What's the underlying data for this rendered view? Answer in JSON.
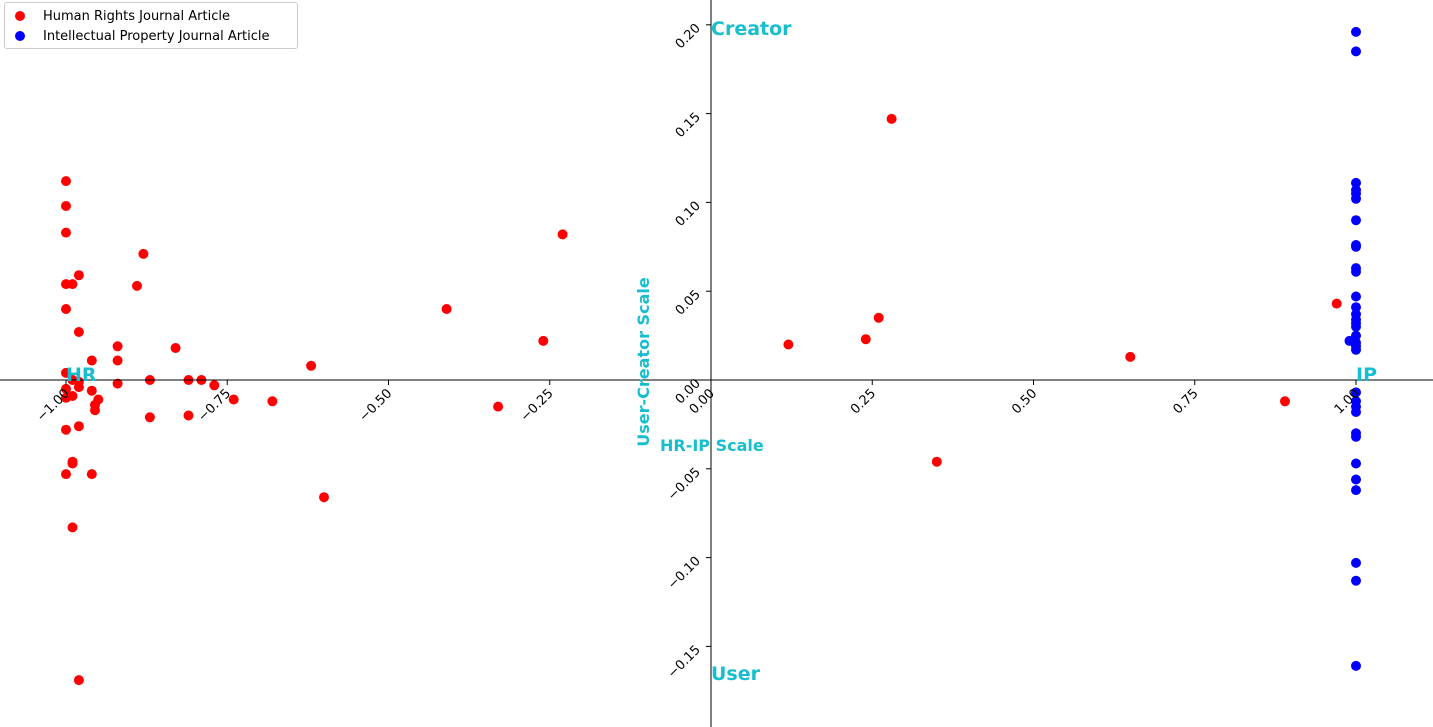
{
  "chart_data": {
    "type": "scatter",
    "xlim": [
      -1.1,
      1.1
    ],
    "ylim": [
      -0.195,
      0.215
    ],
    "x_ticks": [
      "−1.00",
      "−0.75",
      "−0.50",
      "−0.25",
      "0.00",
      "0.25",
      "0.50",
      "0.75",
      "1.00"
    ],
    "x_tick_values": [
      -1.0,
      -0.75,
      -0.5,
      -0.25,
      0.0,
      0.25,
      0.5,
      0.75,
      1.0
    ],
    "y_ticks": [
      "−0.15",
      "−0.10",
      "−0.05",
      "0.00",
      "0.05",
      "0.10",
      "0.15",
      "0.20"
    ],
    "y_tick_values": [
      -0.15,
      -0.1,
      -0.05,
      0.0,
      0.05,
      0.1,
      0.15,
      0.2
    ],
    "xlabel": "HR-IP Scale",
    "ylabel": "User-Creator Scale",
    "annotations": {
      "left": "HR",
      "right": "IP",
      "top": "Creator",
      "bottom": "User",
      "color": "#17becf"
    },
    "grid": false,
    "legend_position": "upper left",
    "series": [
      {
        "name": "Human Rights Journal Article",
        "color": "#ff0000",
        "points": [
          [
            -1.0,
            0.112
          ],
          [
            -1.0,
            0.098
          ],
          [
            -1.0,
            0.083
          ],
          [
            -1.0,
            0.054
          ],
          [
            -0.99,
            0.054
          ],
          [
            -0.98,
            0.059
          ],
          [
            -1.0,
            0.04
          ],
          [
            -0.98,
            0.027
          ],
          [
            -0.96,
            0.011
          ],
          [
            -1.0,
            0.004
          ],
          [
            -0.99,
            0.0
          ],
          [
            -0.98,
            -0.001
          ],
          [
            -1.0,
            -0.005
          ],
          [
            -0.98,
            -0.004
          ],
          [
            -0.96,
            -0.006
          ],
          [
            -0.99,
            -0.009
          ],
          [
            -1.0,
            -0.01
          ],
          [
            -0.955,
            -0.014
          ],
          [
            -0.95,
            -0.011
          ],
          [
            -0.955,
            -0.017
          ],
          [
            -1.0,
            -0.028
          ],
          [
            -0.98,
            -0.026
          ],
          [
            -0.99,
            -0.046
          ],
          [
            -0.99,
            -0.047
          ],
          [
            -1.0,
            -0.053
          ],
          [
            -0.96,
            -0.053
          ],
          [
            -0.99,
            -0.083
          ],
          [
            -0.98,
            -0.169
          ],
          [
            -0.92,
            0.019
          ],
          [
            -0.92,
            0.011
          ],
          [
            -0.92,
            -0.002
          ],
          [
            -0.89,
            0.053
          ],
          [
            -0.88,
            0.071
          ],
          [
            -0.87,
            0.0
          ],
          [
            -0.87,
            -0.021
          ],
          [
            -0.83,
            0.018
          ],
          [
            -0.81,
            0.0
          ],
          [
            -0.81,
            -0.02
          ],
          [
            -0.79,
            0.0
          ],
          [
            -0.77,
            -0.003
          ],
          [
            -0.74,
            -0.011
          ],
          [
            -0.68,
            -0.012
          ],
          [
            -0.62,
            0.008
          ],
          [
            -0.6,
            -0.066
          ],
          [
            -0.41,
            0.04
          ],
          [
            -0.33,
            -0.015
          ],
          [
            -0.26,
            0.022
          ],
          [
            -0.23,
            0.082
          ],
          [
            0.12,
            0.02
          ],
          [
            0.24,
            0.023
          ],
          [
            0.26,
            0.035
          ],
          [
            0.28,
            0.147
          ],
          [
            0.35,
            -0.046
          ],
          [
            0.65,
            0.013
          ],
          [
            0.89,
            -0.012
          ],
          [
            0.97,
            0.043
          ]
        ]
      },
      {
        "name": "Intellectual Property Journal Article",
        "color": "#0000ff",
        "points": [
          [
            1.0,
            0.196
          ],
          [
            1.0,
            0.185
          ],
          [
            1.0,
            0.111
          ],
          [
            1.0,
            0.107
          ],
          [
            1.0,
            0.105
          ],
          [
            1.0,
            0.102
          ],
          [
            1.0,
            0.09
          ],
          [
            1.0,
            0.076
          ],
          [
            1.0,
            0.075
          ],
          [
            1.0,
            0.063
          ],
          [
            1.0,
            0.061
          ],
          [
            1.0,
            0.047
          ],
          [
            1.0,
            0.041
          ],
          [
            1.0,
            0.037
          ],
          [
            1.0,
            0.034
          ],
          [
            1.0,
            0.032
          ],
          [
            1.0,
            0.03
          ],
          [
            1.0,
            0.025
          ],
          [
            1.0,
            0.021
          ],
          [
            0.99,
            0.022
          ],
          [
            1.0,
            0.019
          ],
          [
            1.0,
            0.017
          ],
          [
            1.0,
            -0.007
          ],
          [
            1.0,
            -0.012
          ],
          [
            1.0,
            -0.015
          ],
          [
            1.0,
            -0.018
          ],
          [
            1.0,
            -0.03
          ],
          [
            1.0,
            -0.032
          ],
          [
            1.0,
            -0.047
          ],
          [
            1.0,
            -0.056
          ],
          [
            1.0,
            -0.062
          ],
          [
            1.0,
            -0.103
          ],
          [
            1.0,
            -0.113
          ],
          [
            1.0,
            -0.161
          ]
        ]
      }
    ]
  }
}
